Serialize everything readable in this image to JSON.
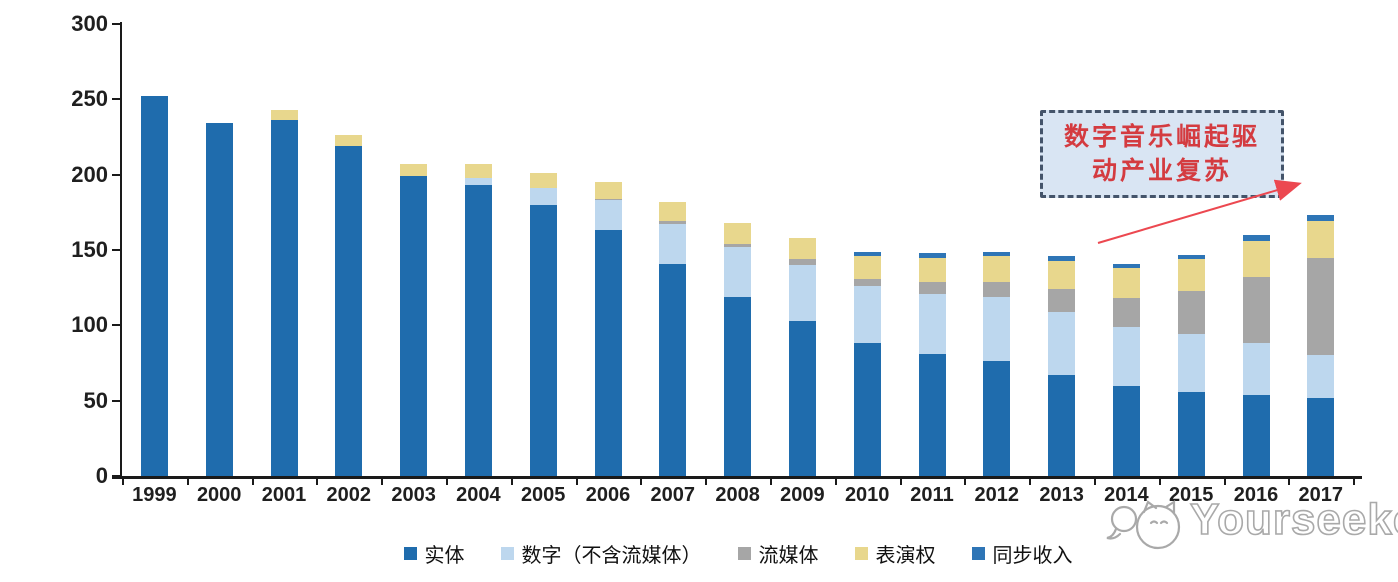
{
  "chart_data": {
    "type": "bar",
    "stacked": true,
    "categories": [
      "1999",
      "2000",
      "2001",
      "2002",
      "2003",
      "2004",
      "2005",
      "2006",
      "2007",
      "2008",
      "2009",
      "2010",
      "2011",
      "2012",
      "2013",
      "2014",
      "2015",
      "2016",
      "2017"
    ],
    "series": [
      {
        "name": "实体",
        "color": "#1F6CAD",
        "values": [
          252,
          234,
          236,
          219,
          199,
          193,
          180,
          163,
          141,
          119,
          103,
          88,
          81,
          76,
          67,
          60,
          56,
          54,
          52
        ]
      },
      {
        "name": "数字（不含流媒体）",
        "color": "#BDD7EE",
        "values": [
          0,
          0,
          0,
          0,
          0,
          5,
          11,
          20,
          26,
          33,
          37,
          38,
          40,
          43,
          42,
          39,
          38,
          34,
          28
        ]
      },
      {
        "name": "流媒体",
        "color": "#A6A6A6",
        "values": [
          0,
          0,
          0,
          0,
          0,
          0,
          0,
          1,
          2,
          2,
          4,
          5,
          8,
          10,
          15,
          19,
          29,
          44,
          65
        ]
      },
      {
        "name": "表演权",
        "color": "#E8D78D",
        "values": [
          0,
          0,
          7,
          7,
          8,
          9,
          10,
          11,
          13,
          14,
          14,
          15,
          16,
          17,
          19,
          20,
          21,
          24,
          24
        ]
      },
      {
        "name": "同步收入",
        "color": "#2E75B6",
        "values": [
          0,
          0,
          0,
          0,
          0,
          0,
          0,
          0,
          0,
          0,
          0,
          3,
          3,
          3,
          3,
          3,
          3,
          4,
          4
        ]
      }
    ],
    "totals": [
      252,
      234,
      243,
      226,
      207,
      207,
      201,
      195,
      182,
      168,
      158,
      149,
      148,
      149,
      146,
      141,
      147,
      160,
      173
    ],
    "xlabel": "",
    "ylabel": "",
    "ylim": [
      0,
      300
    ],
    "yticks": [
      0,
      50,
      100,
      150,
      200,
      250,
      300
    ],
    "grid": false,
    "legend_position": "bottom"
  },
  "annotation": {
    "line1": "数字音乐崛起驱",
    "line2": "动产业复苏"
  },
  "watermark": {
    "text": "Yourseeker"
  }
}
